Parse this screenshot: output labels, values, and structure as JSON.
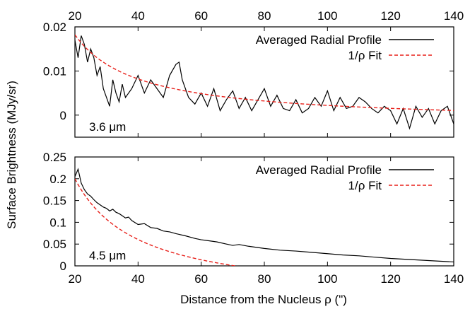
{
  "y_axis_title": "Surface Brightness (MJy/sr)",
  "x_axis_title": "Distance from the Nucleus ρ (\")",
  "chart_data": [
    {
      "type": "line",
      "panel_label": "3.6 μm",
      "xlabel": "Distance from the Nucleus ρ (\")",
      "ylabel": "Surface Brightness (MJy/sr)",
      "xlim": [
        20,
        140
      ],
      "ylim": [
        -0.005,
        0.02
      ],
      "xticks": [
        20,
        40,
        60,
        80,
        100,
        120,
        140
      ],
      "xtick_labels": [
        "20",
        "40",
        "60",
        "80",
        "100",
        "120",
        "140"
      ],
      "yticks": [
        0,
        0.01,
        0.02
      ],
      "ytick_labels": [
        "0",
        "0.01",
        "0.02"
      ],
      "top_axis_ticks_labeled": true,
      "legend_position": "top-right",
      "series": [
        {
          "name": "Averaged Radial Profile",
          "color": "#000000",
          "style": "solid",
          "x": [
            20,
            21,
            22,
            23,
            24,
            25,
            26,
            27,
            28,
            29,
            30,
            31,
            32,
            33,
            34,
            35,
            36,
            38,
            40,
            42,
            44,
            46,
            48,
            50,
            52,
            53,
            54,
            56,
            58,
            60,
            62,
            64,
            66,
            68,
            70,
            72,
            74,
            76,
            78,
            80,
            82,
            84,
            86,
            88,
            90,
            92,
            94,
            96,
            98,
            100,
            102,
            104,
            106,
            108,
            110,
            112,
            114,
            116,
            118,
            120,
            122,
            124,
            126,
            128,
            130,
            132,
            134,
            136,
            138,
            140
          ],
          "y": [
            0.017,
            0.013,
            0.018,
            0.016,
            0.012,
            0.015,
            0.013,
            0.009,
            0.011,
            0.006,
            0.004,
            0.002,
            0.008,
            0.005,
            0.003,
            0.007,
            0.004,
            0.006,
            0.009,
            0.005,
            0.008,
            0.006,
            0.004,
            0.009,
            0.0115,
            0.012,
            0.008,
            0.004,
            0.0025,
            0.005,
            0.002,
            0.006,
            0.001,
            0.0035,
            0.0055,
            0.0015,
            0.004,
            0.001,
            0.0035,
            0.006,
            0.002,
            0.0045,
            0.0015,
            0.001,
            0.0035,
            0.0005,
            0.0015,
            0.004,
            0.002,
            0.0055,
            0.001,
            0.004,
            0.0015,
            0.002,
            0.004,
            0.003,
            0.0015,
            0.0005,
            0.002,
            0.001,
            -0.002,
            0.0015,
            -0.003,
            0.002,
            -0.0005,
            0.0015,
            -0.002,
            0.001,
            0.002,
            -0.002
          ]
        },
        {
          "name": "1/ρ Fit",
          "color": "#e8201a",
          "style": "dashed",
          "fit": {
            "a": 0.4,
            "b": -0.0018
          }
        }
      ]
    },
    {
      "type": "line",
      "panel_label": "4.5 μm",
      "xlabel": "Distance from the Nucleus ρ (\")",
      "ylabel": "Surface Brightness (MJy/sr)",
      "xlim": [
        20,
        140
      ],
      "ylim": [
        0,
        0.25
      ],
      "xticks": [
        20,
        40,
        60,
        80,
        100,
        120,
        140
      ],
      "xtick_labels": [
        "20",
        "40",
        "60",
        "80",
        "100",
        "120",
        "140"
      ],
      "yticks": [
        0,
        0.05,
        0.1,
        0.15,
        0.2,
        0.25
      ],
      "ytick_labels": [
        "0",
        "0.05",
        "0.1",
        "0.15",
        "0.2",
        "0.25"
      ],
      "legend_position": "top-right",
      "series": [
        {
          "name": "Averaged Radial Profile",
          "color": "#000000",
          "style": "solid",
          "x": [
            20,
            21,
            22,
            23,
            24,
            25,
            26,
            27,
            28,
            29,
            30,
            31,
            32,
            33,
            34,
            35,
            36,
            37,
            38,
            40,
            42,
            44,
            46,
            48,
            50,
            52,
            55,
            58,
            60,
            62,
            65,
            68,
            70,
            72,
            75,
            78,
            80,
            85,
            90,
            95,
            100,
            105,
            110,
            115,
            120,
            125,
            130,
            135,
            140
          ],
          "y": [
            0.205,
            0.222,
            0.19,
            0.175,
            0.165,
            0.16,
            0.152,
            0.145,
            0.14,
            0.135,
            0.132,
            0.126,
            0.13,
            0.123,
            0.12,
            0.115,
            0.11,
            0.112,
            0.104,
            0.095,
            0.097,
            0.088,
            0.086,
            0.08,
            0.078,
            0.074,
            0.069,
            0.063,
            0.06,
            0.058,
            0.055,
            0.05,
            0.047,
            0.049,
            0.045,
            0.042,
            0.04,
            0.036,
            0.034,
            0.031,
            0.028,
            0.025,
            0.023,
            0.02,
            0.017,
            0.015,
            0.013,
            0.011,
            0.009
          ]
        },
        {
          "name": "1/ρ Fit",
          "color": "#e8201a",
          "style": "dashed",
          "fit": {
            "a": 5.58,
            "b": -0.079
          }
        }
      ]
    }
  ]
}
